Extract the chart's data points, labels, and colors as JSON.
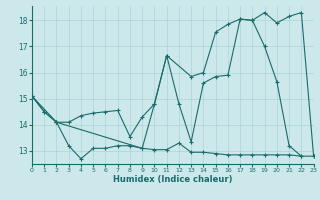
{
  "xlabel": "Humidex (Indice chaleur)",
  "bg_color": "#cce8ea",
  "grid_color": "#aad4d8",
  "line_color": "#1a6b6b",
  "xlim": [
    0,
    23
  ],
  "ylim": [
    12.5,
    18.55
  ],
  "yticks": [
    13,
    14,
    15,
    16,
    17,
    18
  ],
  "xticks": [
    0,
    1,
    2,
    3,
    4,
    5,
    6,
    7,
    8,
    9,
    10,
    11,
    12,
    13,
    14,
    15,
    16,
    17,
    18,
    19,
    20,
    21,
    22,
    23
  ],
  "line1_x": [
    0,
    1,
    2,
    3,
    4,
    5,
    6,
    7,
    8,
    9,
    10,
    11,
    12,
    13,
    14,
    15,
    16,
    17,
    18,
    19,
    20,
    21,
    22,
    23
  ],
  "line1_y": [
    15.1,
    14.5,
    14.1,
    13.2,
    12.7,
    13.1,
    13.1,
    13.2,
    13.2,
    13.1,
    13.05,
    13.05,
    13.3,
    12.95,
    12.95,
    12.9,
    12.85,
    12.85,
    12.85,
    12.85,
    12.85,
    12.85,
    12.8,
    12.8
  ],
  "line2_x": [
    0,
    1,
    2,
    3,
    4,
    5,
    6,
    7,
    8,
    9,
    10,
    11,
    12,
    13,
    14,
    15,
    16,
    17,
    18,
    19,
    20,
    21,
    22
  ],
  "line2_y": [
    15.1,
    14.5,
    14.1,
    14.1,
    14.35,
    14.45,
    14.5,
    14.55,
    13.55,
    14.3,
    14.8,
    16.65,
    14.8,
    13.35,
    15.6,
    15.85,
    15.9,
    18.05,
    18.0,
    17.0,
    15.65,
    13.2,
    12.8
  ],
  "line3_x": [
    0,
    2,
    9,
    10,
    11,
    13,
    14,
    15,
    16,
    17,
    18,
    19,
    20,
    21,
    22,
    23
  ],
  "line3_y": [
    15.1,
    14.1,
    13.1,
    14.8,
    16.65,
    15.85,
    16.0,
    17.55,
    17.85,
    18.05,
    18.0,
    18.3,
    17.9,
    18.15,
    18.3,
    12.8
  ]
}
